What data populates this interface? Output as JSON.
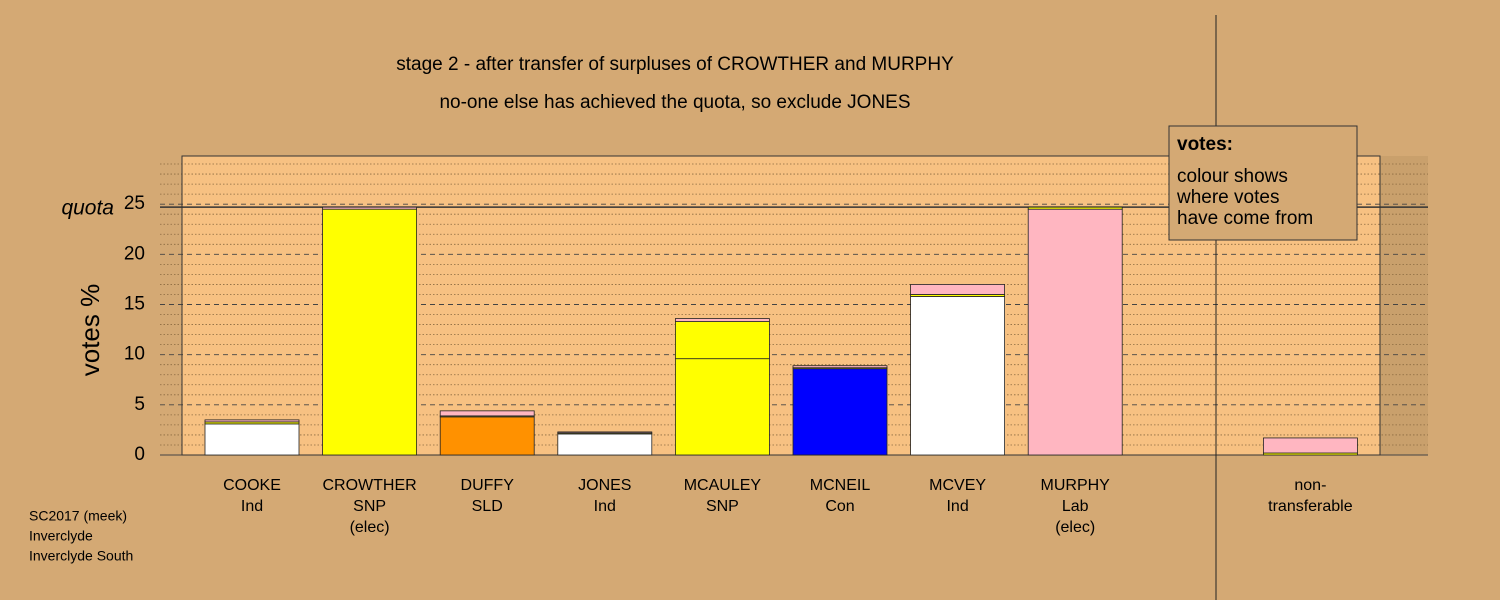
{
  "chart_data": {
    "type": "stacked-bar",
    "title": [
      "stage 2 - after transfer of surpluses of CROWTHER and MURPHY",
      "no-one else has achieved the quota, so exclude JONES"
    ],
    "y_label": "votes %",
    "quota_label": "quota",
    "quota": 24.7,
    "categories": [
      [
        "COOKE",
        "Ind"
      ],
      [
        "CROWTHER",
        "SNP",
        "(elec)"
      ],
      [
        "DUFFY",
        "SLD"
      ],
      [
        "JONES",
        "Ind"
      ],
      [
        "MCAULEY",
        "SNP"
      ],
      [
        "MCNEIL",
        "Con"
      ],
      [
        "MCVEY",
        "Ind"
      ],
      [
        "MURPHY",
        "Lab",
        "(elec)"
      ],
      null,
      [
        "non-",
        "transferable"
      ]
    ],
    "series": [
      {
        "colors": [
          "#ffffff",
          "#ffff00",
          "#ff9100",
          "#ffffff",
          "#ffff00",
          "#0000ff",
          "#ffffff",
          "#ffb6c1",
          null,
          "#ffffff"
        ],
        "values": [
          3.1,
          24.5,
          3.8,
          2.1,
          9.6,
          8.6,
          15.8,
          24.5,
          null,
          0
        ]
      },
      {
        "color": "#ffff00",
        "values": [
          0.2,
          0,
          0.1,
          0.1,
          3.7,
          0.1,
          0.2,
          0.2,
          null,
          0.2
        ]
      },
      {
        "color": "#ffb6c1",
        "values": [
          0.2,
          0.2,
          0.5,
          0.1,
          0.3,
          0.2,
          1.0,
          0,
          null,
          1.5
        ]
      }
    ],
    "ylim": [
      0,
      29.8
    ],
    "yticks": [
      0,
      5,
      10,
      15,
      20,
      25
    ],
    "yminorticks": [
      1,
      2,
      3,
      4,
      6,
      7,
      8,
      9,
      11,
      12,
      13,
      14,
      16,
      17,
      18,
      19,
      21,
      22,
      23,
      24,
      26,
      27,
      28,
      29
    ],
    "legend": {
      "title": "votes:",
      "lines": [
        "colour shows",
        "where votes",
        "have come from"
      ]
    },
    "footer": [
      "SC2017 (meek)",
      "Inverclyde",
      "Inverclyde South"
    ]
  }
}
